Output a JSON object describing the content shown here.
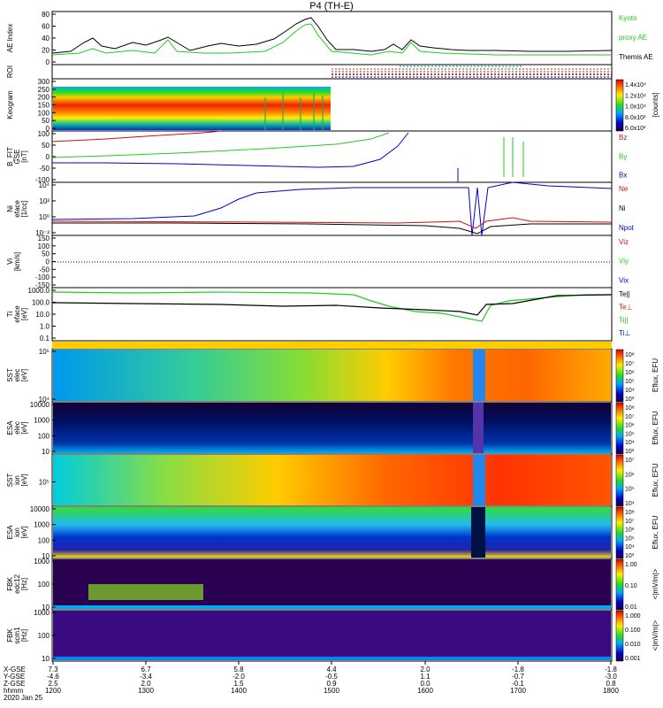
{
  "title": "P4 (TH-E)",
  "colors": {
    "black": "#000000",
    "green": "#22cc22",
    "red": "#cc1111",
    "blue": "#0000cc",
    "cyan": "#00aaff",
    "orange": "#ff7700"
  },
  "panels": {
    "ae": {
      "ylabel": "AE Index",
      "yticks": [
        "80",
        "60",
        "40",
        "20",
        "0"
      ],
      "legend": [
        "Kyoto",
        "proxy AE",
        "Themis AE"
      ]
    },
    "roi": {
      "ylabel": "ROI"
    },
    "keogram": {
      "ylabel": "Keogram",
      "yticks": [
        "300",
        "250",
        "200",
        "150",
        "100",
        "50",
        "0"
      ],
      "cb_ticks": [
        "1.4x10⁴",
        "1.2x10⁴",
        "1.0x10⁴",
        "8.0x10³",
        "6.0x10³"
      ],
      "cb_label": "[counts]"
    },
    "bfit": {
      "ylabel": "B_FIT",
      "ylabel2": "GSE",
      "ylabel3": "[nT]",
      "yticks": [
        "100",
        "50",
        "0",
        "-50",
        "-100"
      ],
      "legend": [
        "Bz",
        "By",
        "Bx"
      ]
    },
    "ni": {
      "ylabel": "Ni",
      "ylabel2": "eface",
      "ylabel3": "[1/cc]",
      "yticks": [
        "10⁴",
        "10²",
        "10⁰",
        "10⁻²"
      ],
      "legend": [
        "Ne",
        "Ni",
        "Npot"
      ]
    },
    "vi": {
      "ylabel": "Vi",
      "ylabel3": "[km/s]",
      "yticks": [
        "150",
        "100",
        "50",
        "0",
        "-50",
        "-100",
        "-150"
      ],
      "legend": [
        "Viz",
        "Viy",
        "Vix"
      ]
    },
    "ti": {
      "ylabel": "Ti",
      "ylabel2": "eface",
      "ylabel3": "[eV]",
      "yticks": [
        "1000.0",
        "100.0",
        "10.0",
        "1.0",
        "0.1"
      ],
      "legend": [
        "Te||",
        "Te⊥",
        "Ti||",
        "Ti⊥"
      ]
    },
    "sst_e": {
      "ylabel": "SST",
      "ylabel2": "elec",
      "ylabel3": "[eV]",
      "yticks": [
        "10⁵",
        "10⁴"
      ],
      "cb_ticks": [
        "10⁸",
        "10⁷",
        "10⁶",
        "10⁵",
        "10⁴",
        "10³"
      ],
      "cb_label": "Eflux, EFU"
    },
    "esa_e": {
      "ylabel": "ESA",
      "ylabel2": "elec",
      "ylabel3": "[eV]",
      "yticks": [
        "10000",
        "1000",
        "100",
        "10"
      ],
      "cb_ticks": [
        "10⁸",
        "10⁷",
        "10⁶",
        "10⁵",
        "10⁴",
        "10³"
      ],
      "cb_label": "Eflux, EFU"
    },
    "sst_i": {
      "ylabel": "SST",
      "ylabel2": "ion",
      "ylabel3": "[eV]",
      "yticks": [
        "10⁵"
      ],
      "cb_ticks": [
        "10⁷",
        "10⁶",
        "10⁵",
        "10⁴"
      ],
      "cb_label": "Eflux, EFU"
    },
    "esa_i": {
      "ylabel": "ESA",
      "ylabel2": "ion",
      "ylabel3": "[eV]",
      "yticks": [
        "10000",
        "1000",
        "100",
        "10"
      ],
      "cb_ticks": [
        "10⁸",
        "10⁷",
        "10⁶",
        "10⁵",
        "10⁴",
        "10³"
      ],
      "cb_label": "Eflux, EFU"
    },
    "fbk_e": {
      "ylabel": "FBK",
      "ylabel2": "edc12",
      "ylabel3": "[Hz]",
      "yticks": [
        "1000",
        "100",
        "10"
      ],
      "cb_ticks": [
        "1.00",
        "0.10",
        "0.01"
      ],
      "cb_label": "<|mV/m|>"
    },
    "fbk_s": {
      "ylabel": "FBK",
      "ylabel2": "scm1",
      "ylabel3": "[Hz]",
      "yticks": [
        "1000",
        "100",
        "10"
      ],
      "cb_ticks": [
        "1.000",
        "0.100",
        "0.010",
        "0.001"
      ],
      "cb_label": "<|mV/m|>"
    }
  },
  "xaxis": {
    "rows": [
      {
        "name": "X-GSE",
        "values": [
          "7.3",
          "6.7",
          "5.8",
          "4.4",
          "2.0",
          "-1.8",
          "-1.8"
        ]
      },
      {
        "name": "Y-GSE",
        "values": [
          "-4.6",
          "-3.4",
          "-2.0",
          "-0.5",
          "1.1",
          "-0.7",
          "-3.0"
        ]
      },
      {
        "name": "Z-GSE",
        "values": [
          "2.5",
          "2.0",
          "1.5",
          "0.9",
          "0.0",
          "-0.1",
          "0.8"
        ]
      },
      {
        "name": "hhmm",
        "values": [
          "1200",
          "1300",
          "1400",
          "1500",
          "1600",
          "1700",
          "1800"
        ]
      }
    ],
    "date": "2020 Jan 25"
  },
  "chart_data": {
    "type": "line",
    "title": "P4 (TH-E)",
    "x": [
      "1200",
      "1300",
      "1400",
      "1500",
      "1600",
      "1700",
      "1800"
    ],
    "xlabel": "hhmm",
    "series": [
      {
        "name": "Themis AE",
        "values": [
          18,
          33,
          28,
          73,
          25,
          18,
          20
        ]
      },
      {
        "name": "Kyoto proxy AE",
        "values": [
          14,
          25,
          20,
          62,
          22,
          15,
          15
        ]
      }
    ],
    "ylabel": "AE Index",
    "ylim": [
      0,
      80
    ]
  }
}
